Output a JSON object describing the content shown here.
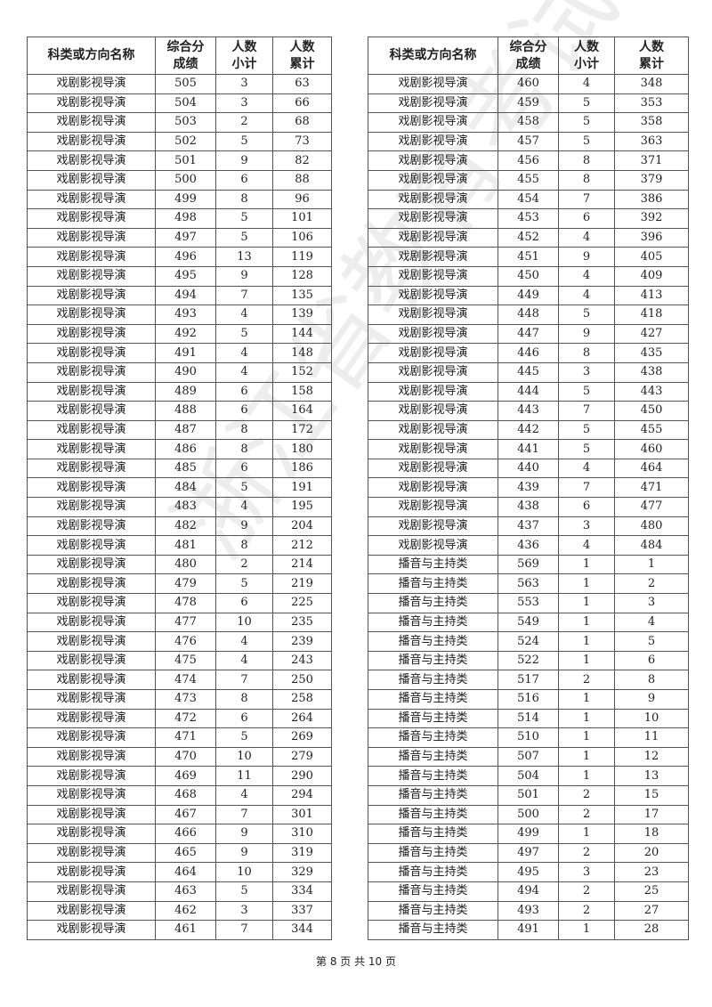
{
  "headers": [
    "科类或方向名称",
    "综合分\n成绩",
    "人数\n小计",
    "人数\n累计"
  ],
  "watermark": "浙江省教育考试院",
  "left_table": [
    [
      "戏剧影视导演",
      "505",
      "3",
      "63"
    ],
    [
      "戏剧影视导演",
      "504",
      "3",
      "66"
    ],
    [
      "戏剧影视导演",
      "503",
      "2",
      "68"
    ],
    [
      "戏剧影视导演",
      "502",
      "5",
      "73"
    ],
    [
      "戏剧影视导演",
      "501",
      "9",
      "82"
    ],
    [
      "戏剧影视导演",
      "500",
      "6",
      "88"
    ],
    [
      "戏剧影视导演",
      "499",
      "8",
      "96"
    ],
    [
      "戏剧影视导演",
      "498",
      "5",
      "101"
    ],
    [
      "戏剧影视导演",
      "497",
      "5",
      "106"
    ],
    [
      "戏剧影视导演",
      "496",
      "13",
      "119"
    ],
    [
      "戏剧影视导演",
      "495",
      "9",
      "128"
    ],
    [
      "戏剧影视导演",
      "494",
      "7",
      "135"
    ],
    [
      "戏剧影视导演",
      "493",
      "4",
      "139"
    ],
    [
      "戏剧影视导演",
      "492",
      "5",
      "144"
    ],
    [
      "戏剧影视导演",
      "491",
      "4",
      "148"
    ],
    [
      "戏剧影视导演",
      "490",
      "4",
      "152"
    ],
    [
      "戏剧影视导演",
      "489",
      "6",
      "158"
    ],
    [
      "戏剧影视导演",
      "488",
      "6",
      "164"
    ],
    [
      "戏剧影视导演",
      "487",
      "8",
      "172"
    ],
    [
      "戏剧影视导演",
      "486",
      "8",
      "180"
    ],
    [
      "戏剧影视导演",
      "485",
      "6",
      "186"
    ],
    [
      "戏剧影视导演",
      "484",
      "5",
      "191"
    ],
    [
      "戏剧影视导演",
      "483",
      "4",
      "195"
    ],
    [
      "戏剧影视导演",
      "482",
      "9",
      "204"
    ],
    [
      "戏剧影视导演",
      "481",
      "8",
      "212"
    ],
    [
      "戏剧影视导演",
      "480",
      "2",
      "214"
    ],
    [
      "戏剧影视导演",
      "479",
      "5",
      "219"
    ],
    [
      "戏剧影视导演",
      "478",
      "6",
      "225"
    ],
    [
      "戏剧影视导演",
      "477",
      "10",
      "235"
    ],
    [
      "戏剧影视导演",
      "476",
      "4",
      "239"
    ],
    [
      "戏剧影视导演",
      "475",
      "4",
      "243"
    ],
    [
      "戏剧影视导演",
      "474",
      "7",
      "250"
    ],
    [
      "戏剧影视导演",
      "473",
      "8",
      "258"
    ],
    [
      "戏剧影视导演",
      "472",
      "6",
      "264"
    ],
    [
      "戏剧影视导演",
      "471",
      "5",
      "269"
    ],
    [
      "戏剧影视导演",
      "470",
      "10",
      "279"
    ],
    [
      "戏剧影视导演",
      "469",
      "11",
      "290"
    ],
    [
      "戏剧影视导演",
      "468",
      "4",
      "294"
    ],
    [
      "戏剧影视导演",
      "467",
      "7",
      "301"
    ],
    [
      "戏剧影视导演",
      "466",
      "9",
      "310"
    ],
    [
      "戏剧影视导演",
      "465",
      "9",
      "319"
    ],
    [
      "戏剧影视导演",
      "464",
      "10",
      "329"
    ],
    [
      "戏剧影视导演",
      "463",
      "5",
      "334"
    ],
    [
      "戏剧影视导演",
      "462",
      "3",
      "337"
    ],
    [
      "戏剧影视导演",
      "461",
      "7",
      "344"
    ]
  ],
  "right_table": [
    [
      "戏剧影视导演",
      "460",
      "4",
      "348"
    ],
    [
      "戏剧影视导演",
      "459",
      "5",
      "353"
    ],
    [
      "戏剧影视导演",
      "458",
      "5",
      "358"
    ],
    [
      "戏剧影视导演",
      "457",
      "5",
      "363"
    ],
    [
      "戏剧影视导演",
      "456",
      "8",
      "371"
    ],
    [
      "戏剧影视导演",
      "455",
      "8",
      "379"
    ],
    [
      "戏剧影视导演",
      "454",
      "7",
      "386"
    ],
    [
      "戏剧影视导演",
      "453",
      "6",
      "392"
    ],
    [
      "戏剧影视导演",
      "452",
      "4",
      "396"
    ],
    [
      "戏剧影视导演",
      "451",
      "9",
      "405"
    ],
    [
      "戏剧影视导演",
      "450",
      "4",
      "409"
    ],
    [
      "戏剧影视导演",
      "449",
      "4",
      "413"
    ],
    [
      "戏剧影视导演",
      "448",
      "5",
      "418"
    ],
    [
      "戏剧影视导演",
      "447",
      "9",
      "427"
    ],
    [
      "戏剧影视导演",
      "446",
      "8",
      "435"
    ],
    [
      "戏剧影视导演",
      "445",
      "3",
      "438"
    ],
    [
      "戏剧影视导演",
      "444",
      "5",
      "443"
    ],
    [
      "戏剧影视导演",
      "443",
      "7",
      "450"
    ],
    [
      "戏剧影视导演",
      "442",
      "5",
      "455"
    ],
    [
      "戏剧影视导演",
      "441",
      "5",
      "460"
    ],
    [
      "戏剧影视导演",
      "440",
      "4",
      "464"
    ],
    [
      "戏剧影视导演",
      "439",
      "7",
      "471"
    ],
    [
      "戏剧影视导演",
      "438",
      "6",
      "477"
    ],
    [
      "戏剧影视导演",
      "437",
      "3",
      "480"
    ],
    [
      "戏剧影视导演",
      "436",
      "4",
      "484"
    ],
    [
      "播音与主持类",
      "569",
      "1",
      "1"
    ],
    [
      "播音与主持类",
      "563",
      "1",
      "2"
    ],
    [
      "播音与主持类",
      "553",
      "1",
      "3"
    ],
    [
      "播音与主持类",
      "549",
      "1",
      "4"
    ],
    [
      "播音与主持类",
      "524",
      "1",
      "5"
    ],
    [
      "播音与主持类",
      "522",
      "1",
      "6"
    ],
    [
      "播音与主持类",
      "517",
      "2",
      "8"
    ],
    [
      "播音与主持类",
      "516",
      "1",
      "9"
    ],
    [
      "播音与主持类",
      "514",
      "1",
      "10"
    ],
    [
      "播音与主持类",
      "510",
      "1",
      "11"
    ],
    [
      "播音与主持类",
      "507",
      "1",
      "12"
    ],
    [
      "播音与主持类",
      "504",
      "1",
      "13"
    ],
    [
      "播音与主持类",
      "501",
      "2",
      "15"
    ],
    [
      "播音与主持类",
      "500",
      "2",
      "17"
    ],
    [
      "播音与主持类",
      "499",
      "1",
      "18"
    ],
    [
      "播音与主持类",
      "497",
      "2",
      "20"
    ],
    [
      "播音与主持类",
      "495",
      "3",
      "23"
    ],
    [
      "播音与主持类",
      "494",
      "2",
      "25"
    ],
    [
      "播音与主持类",
      "493",
      "2",
      "27"
    ],
    [
      "播音与主持类",
      "491",
      "1",
      "28"
    ]
  ],
  "footer": "第 8 页 共 10 页"
}
